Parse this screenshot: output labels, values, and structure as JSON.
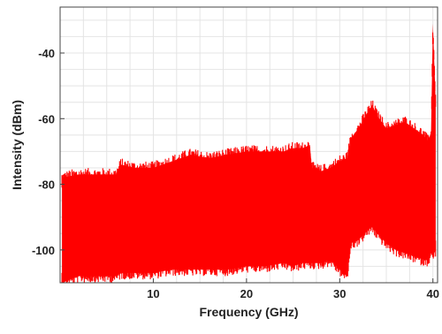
{
  "chart_data": {
    "type": "line",
    "title": "",
    "xlabel": "Frequency (GHz)",
    "ylabel": "Intensity (dBm)",
    "xlim": [
      0,
      40.5
    ],
    "ylim": [
      -110,
      -26
    ],
    "xticks": [
      10,
      20,
      30,
      40
    ],
    "yticks": [
      -40,
      -60,
      -80,
      -100
    ],
    "grid": true,
    "legend": "none",
    "series": [
      {
        "color": "#ff0000",
        "style": "dense noise spectrum",
        "x": [
          0.2,
          2,
          4,
          6,
          6.5,
          8,
          10,
          12,
          13,
          14,
          16,
          18,
          20,
          22,
          24,
          25,
          26,
          26.8,
          27,
          28,
          29,
          30,
          30.8,
          31.2,
          32,
          33,
          33.5,
          34,
          35,
          36,
          37,
          38,
          39,
          39.5,
          39.8,
          40,
          40.3
        ],
        "y_upper": [
          -78,
          -77,
          -77,
          -77,
          -74,
          -75,
          -75,
          -73,
          -72,
          -71,
          -72,
          -71,
          -70,
          -70,
          -70,
          -69,
          -69,
          -68,
          -75,
          -76,
          -75,
          -73,
          -72,
          -66,
          -63,
          -58,
          -56,
          -59,
          -63,
          -62,
          -61,
          -63,
          -65,
          -67,
          -64,
          -31,
          -55
        ],
        "y_lower": [
          -110,
          -108,
          -108,
          -108,
          -107,
          -107,
          -107,
          -106,
          -106,
          -106,
          -106,
          -106,
          -105,
          -105,
          -104,
          -105,
          -104,
          -104,
          -104,
          -104,
          -103,
          -106,
          -108,
          -98,
          -97,
          -94,
          -93,
          -95,
          -98,
          -100,
          -101,
          -102,
          -103,
          -103,
          -101,
          -102,
          -100
        ]
      }
    ]
  }
}
